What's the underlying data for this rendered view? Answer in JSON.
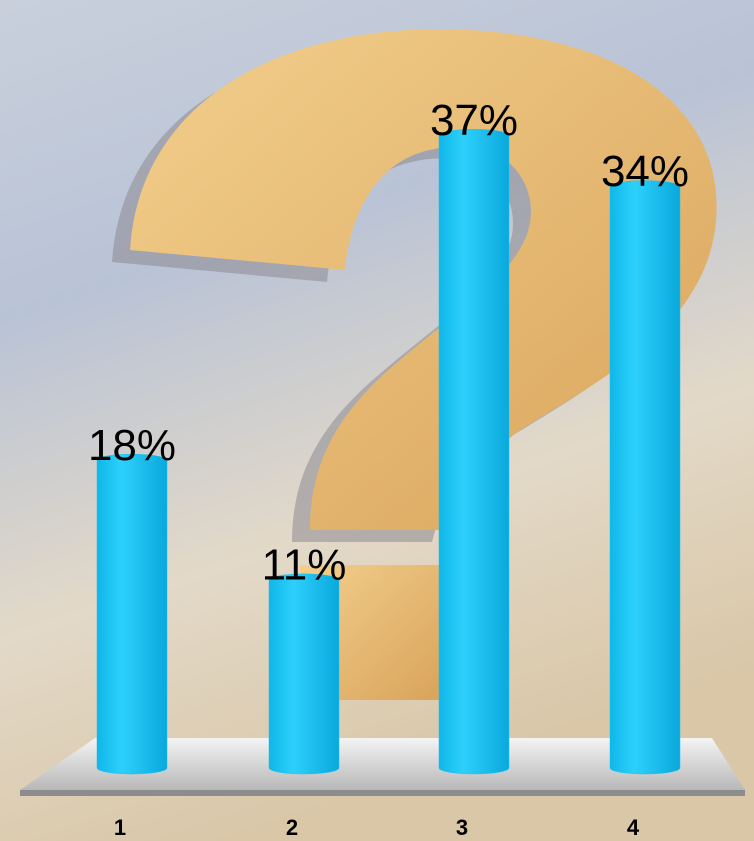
{
  "chart_data": {
    "type": "bar",
    "categories": [
      "1",
      "2",
      "3",
      "4"
    ],
    "values": [
      18,
      11,
      37,
      34
    ],
    "value_labels": [
      "18%",
      "11%",
      "37%",
      "34%"
    ],
    "color": "#19c3f2"
  }
}
